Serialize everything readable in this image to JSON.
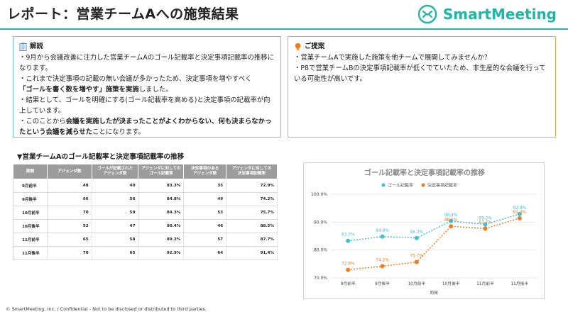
{
  "page": {
    "title": "レポート：営業チームAへの施策結果",
    "logo_text": "SmartMeeting",
    "footer": "© SmartMeeting, Inc. / Confidential - Not to be disclosed or distributed to third parties."
  },
  "colors": {
    "accent": "#29b6a3",
    "summary_border": "#6ec8e0",
    "proposal_border": "#f0a45a",
    "goal_series": "#3cc0d8",
    "decision_series": "#f27a1a"
  },
  "summary": {
    "icon": "clipboard-icon",
    "heading": "解説",
    "line1": "・9月から会議改善に注力した営業チームAのゴール記載率と決定事項記載率の推移になります。",
    "line2a": "・これまで決定事項の記載の無い会議が多かったため、決定事項を増やすべく",
    "line2b_bold": "「ゴールを書く数を増やす」施策を実施",
    "line2c": "しました。",
    "line3": "・結果として、ゴールを明確にする(ゴール記載率を高める)と決定事項の記載率が向上しています。",
    "line4a": "・このことから",
    "line4b_bold": "会議を実施したが決まったことがよくわからない、何も決まらなかったという会議を減らせた",
    "line4c": "ことになります。"
  },
  "proposal": {
    "icon": "lightbulb-icon",
    "heading": "ご提案",
    "line1": "・営業チームAで実施した施策を他チームで展開してみませんか？",
    "line2": "・P8で営業チームBの決定事項記載率が低くでていたため、非生産的な会議を行っている可能性が高いです。"
  },
  "section_title": "▼営業チームAのゴール記載率と決定事項記載率の推移",
  "table": {
    "headers": [
      "期間",
      "アジェンダ数",
      "ゴールが記載された\nアジェンダ数",
      "アジェンダに対しての\nゴール記載率",
      "決定事項のある\nアジェンダ数",
      "アジェンダに対しての\n決定事項記載率"
    ],
    "rows": [
      [
        "9月前半",
        "48",
        "40",
        "83.3%",
        "35",
        "72.9%"
      ],
      [
        "9月後半",
        "66",
        "56",
        "84.8%",
        "49",
        "74.2%"
      ],
      [
        "10月前半",
        "70",
        "59",
        "84.3%",
        "53",
        "75.7%"
      ],
      [
        "10月後半",
        "52",
        "47",
        "90.4%",
        "46",
        "88.5%"
      ],
      [
        "11月前半",
        "65",
        "58",
        "89.2%",
        "57",
        "87.7%"
      ],
      [
        "11月後半",
        "70",
        "65",
        "92.9%",
        "64",
        "91.4%"
      ]
    ]
  },
  "chart_data": {
    "type": "line",
    "title": "ゴール記載率と決定事項記載率の推移",
    "xlabel": "期間",
    "ylabel": "",
    "categories": [
      "9月前半",
      "9月後半",
      "10月前半",
      "10月後半",
      "11月前半",
      "11月後半"
    ],
    "series": [
      {
        "name": "ゴール記載率",
        "values": [
          83.3,
          84.8,
          84.3,
          90.4,
          89.2,
          92.9
        ],
        "labels": [
          "83.3%",
          "84.8%",
          "84.3%",
          "90.4%",
          "89.2%",
          "92.9%"
        ],
        "color": "#3cc0d8"
      },
      {
        "name": "決定事項記載率",
        "values": [
          72.9,
          74.2,
          75.7,
          88.5,
          87.7,
          91.4
        ],
        "labels": [
          "72.9%",
          "74.2%",
          "75.7%",
          "88.5%",
          "87.7%",
          "91.4%"
        ],
        "color": "#f27a1a"
      }
    ],
    "ylim": [
      70,
      100
    ],
    "yticks": [
      "70.0%",
      "80.0%",
      "90.0%",
      "100.0%"
    ],
    "grid": true,
    "legend": "top-center"
  }
}
